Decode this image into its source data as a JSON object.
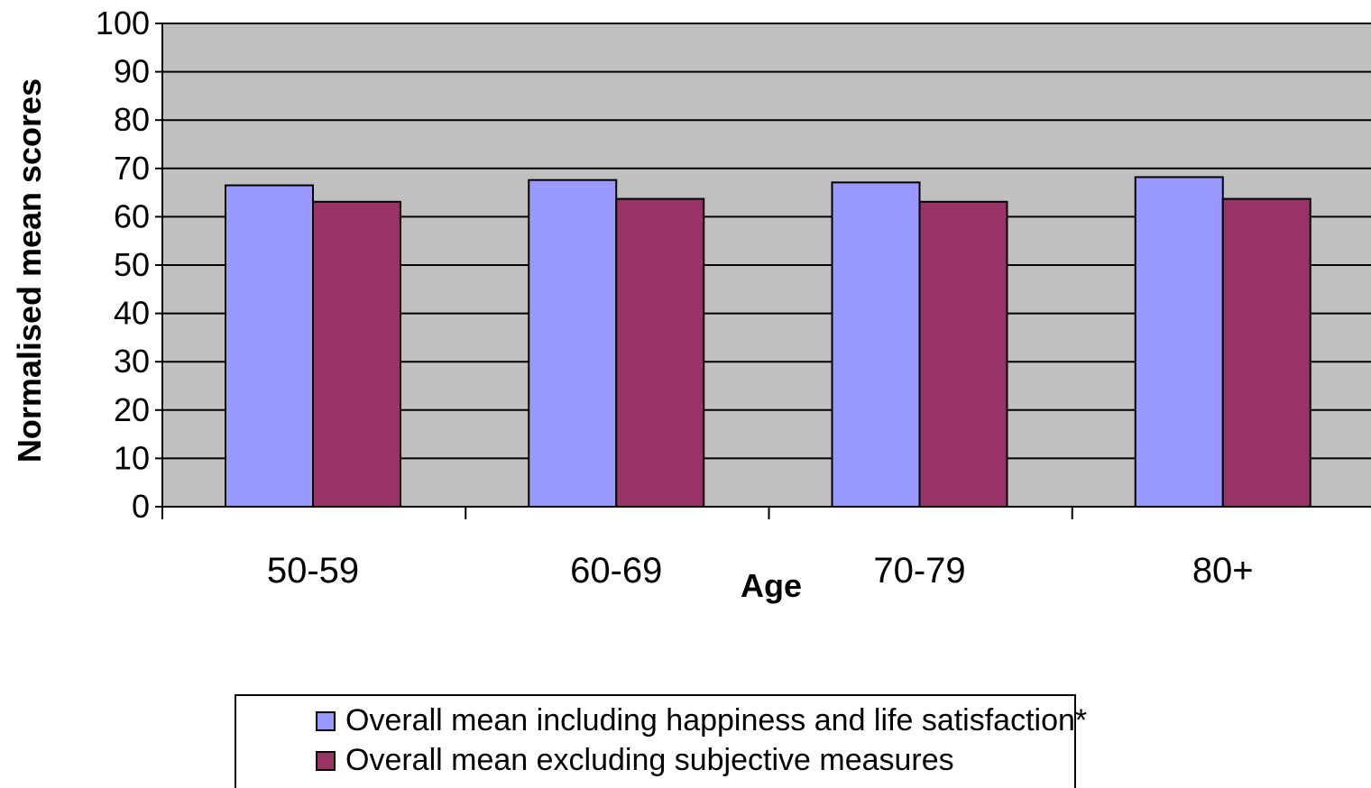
{
  "chart_data": {
    "type": "bar",
    "title": "",
    "xlabel": "Age",
    "ylabel": "Normalised mean scores",
    "categories": [
      "50-59",
      "60-69",
      "70-79",
      "80+"
    ],
    "series": [
      {
        "name": "Overall mean including happiness and life satisfaction*",
        "color": "#9999ff",
        "values": [
          66.5,
          67.6,
          67.1,
          68.2
        ]
      },
      {
        "name": "Overall mean excluding subjective measures",
        "color": "#993366",
        "values": [
          63.1,
          63.7,
          63.1,
          63.7
        ]
      }
    ],
    "ylim": [
      0,
      100
    ],
    "yticks": [
      0,
      10,
      20,
      30,
      40,
      50,
      60,
      70,
      80,
      90,
      100
    ],
    "grid": true,
    "plot_background": "#c0c0c0",
    "legend_position": "bottom"
  }
}
